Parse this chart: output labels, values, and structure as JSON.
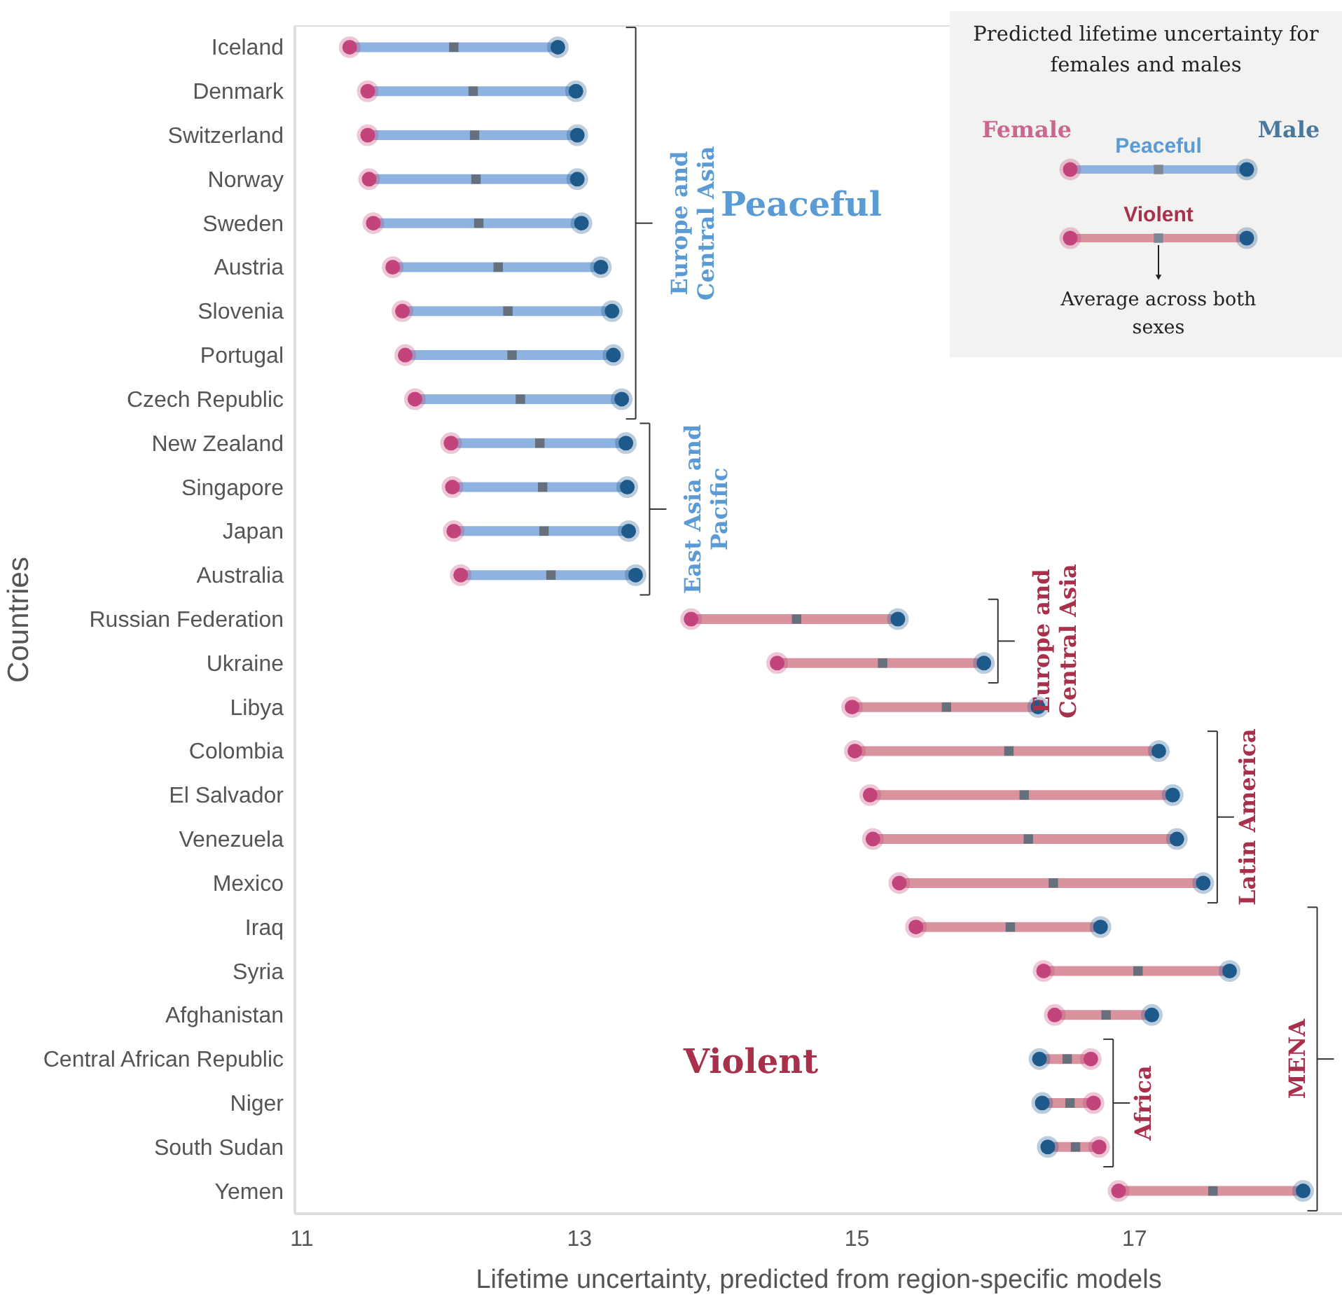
{
  "chart_data": {
    "type": "scatter",
    "orientation": "horizontal",
    "xlabel": "Lifetime uncertainty, predicted from region-specific models",
    "ylabel": "Countries",
    "categories": [
      "Iceland",
      "Denmark",
      "Switzerland",
      "Norway",
      "Sweden",
      "Austria",
      "Slovenia",
      "Portugal",
      "Czech Republic",
      "New Zealand",
      "Singapore",
      "Japan",
      "Australia",
      "Russian Federation",
      "Ukraine",
      "Libya",
      "Colombia",
      "El Salvador",
      "Venezuela",
      "Mexico",
      "Iraq",
      "Syria",
      "Afghanistan",
      "Central African Republic",
      "Niger",
      "South Sudan",
      "Yemen"
    ],
    "colors": [
      "#8fb3e0",
      "#8fb3e0",
      "#8fb3e0",
      "#8fb3e0",
      "#8fb3e0",
      "#8fb3e0",
      "#8fb3e0",
      "#8fb3e0",
      "#8fb3e0",
      "#8fb3e0",
      "#8fb3e0",
      "#8fb3e0",
      "#8fb3e0",
      "#d9939f",
      "#d9939f",
      "#d9939f",
      "#d9939f",
      "#d9939f",
      "#d9939f",
      "#d9939f",
      "#d9939f",
      "#d9939f",
      "#d9939f",
      "#d9939f",
      "#d9939f",
      "#d9939f",
      "#d9939f"
    ],
    "series": [
      {
        "name": "Female",
        "type": "scatter",
        "marker": "circle",
        "color": "#c2447a",
        "values": [
          11.35,
          11.48,
          11.48,
          11.49,
          11.52,
          11.66,
          11.73,
          11.75,
          11.82,
          12.08,
          12.09,
          12.1,
          12.15,
          13.81,
          14.43,
          14.97,
          14.99,
          15.1,
          15.12,
          15.31,
          15.43,
          16.35,
          16.43,
          16.69,
          16.71,
          16.75,
          16.89
        ]
      },
      {
        "name": "Male",
        "type": "scatter",
        "marker": "circle",
        "color": "#1e5a8a",
        "values": [
          12.85,
          12.98,
          12.99,
          12.99,
          13.02,
          13.16,
          13.24,
          13.25,
          13.31,
          13.34,
          13.35,
          13.36,
          13.41,
          15.3,
          15.92,
          16.31,
          17.18,
          17.28,
          17.31,
          17.5,
          16.76,
          17.69,
          17.13,
          16.32,
          16.34,
          16.38,
          18.22
        ]
      },
      {
        "type": "scatter",
        "marker": "square",
        "color": "#66707c",
        "values": [
          12.1,
          12.24,
          12.25,
          12.26,
          12.28,
          12.42,
          12.49,
          12.52,
          12.58,
          12.72,
          12.74,
          12.75,
          12.8,
          14.57,
          15.19,
          15.65,
          16.1,
          16.21,
          16.24,
          16.42,
          16.11,
          17.03,
          16.8,
          16.52,
          16.54,
          16.58,
          17.57
        ]
      }
    ],
    "xlim": [
      10.95,
      18.5
    ],
    "xticks": [
      11,
      13,
      15,
      17
    ],
    "grid": false,
    "legend": "top right",
    "legend_title": "Predicted lifetime uncertainty for females and males",
    "annotations": [
      "Peaceful",
      "Violent",
      "Europe and Central Asia",
      "East Asia and Pacific",
      "Europe and Central Asia",
      "Latin America",
      "Africa",
      "MENA",
      "Peaceful",
      "Violent",
      "Average across both sexes"
    ]
  }
}
